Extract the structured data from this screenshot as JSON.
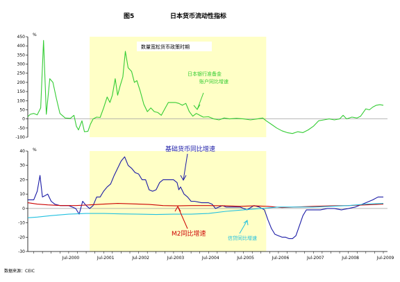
{
  "figure": {
    "fig_label": "图5",
    "title": "日本货币流动性指标",
    "source": "数据来源：CEIC"
  },
  "colors": {
    "shade": "#FFFFC6",
    "reserve": "#33CC33",
    "base": "#1A1AA6",
    "m2": "#CC0000",
    "loan": "#20C0E0",
    "zero_line": "#A0A0A0"
  },
  "chart_data": [
    {
      "type": "line",
      "unit": "%",
      "ylim": [
        -100,
        450
      ],
      "yticks": [
        -100,
        -50,
        0,
        50,
        100,
        150,
        200,
        250,
        300,
        350,
        400,
        450
      ],
      "shaded_period": {
        "label": "数量宽松货币政策时期",
        "x_start": 2001.1,
        "x_end": 2006.15
      },
      "series": [
        {
          "name": "日本银行准备金账户同比增速",
          "label_lines": [
            "日本银行准备金",
            "账户同比增速"
          ],
          "color_key": "reserve",
          "points": [
            [
              1999.33,
              12
            ],
            [
              1999.4,
              25
            ],
            [
              1999.5,
              30
            ],
            [
              1999.6,
              22
            ],
            [
              1999.7,
              60
            ],
            [
              1999.78,
              430
            ],
            [
              1999.86,
              25
            ],
            [
              1999.96,
              220
            ],
            [
              2000.05,
              200
            ],
            [
              2000.15,
              110
            ],
            [
              2000.25,
              30
            ],
            [
              2000.4,
              5
            ],
            [
              2000.55,
              3
            ],
            [
              2000.65,
              20
            ],
            [
              2000.72,
              -40
            ],
            [
              2000.78,
              -60
            ],
            [
              2000.88,
              -10
            ],
            [
              2000.95,
              -70
            ],
            [
              2001.05,
              -68
            ],
            [
              2001.12,
              -30
            ],
            [
              2001.2,
              0
            ],
            [
              2001.3,
              10
            ],
            [
              2001.4,
              8
            ],
            [
              2001.5,
              60
            ],
            [
              2001.6,
              120
            ],
            [
              2001.68,
              90
            ],
            [
              2001.75,
              130
            ],
            [
              2001.83,
              220
            ],
            [
              2001.9,
              130
            ],
            [
              2001.97,
              180
            ],
            [
              2002.05,
              230
            ],
            [
              2002.12,
              370
            ],
            [
              2002.2,
              280
            ],
            [
              2002.3,
              260
            ],
            [
              2002.38,
              200
            ],
            [
              2002.45,
              210
            ],
            [
              2002.55,
              150
            ],
            [
              2002.65,
              80
            ],
            [
              2002.75,
              40
            ],
            [
              2002.85,
              60
            ],
            [
              2002.95,
              40
            ],
            [
              2003.05,
              35
            ],
            [
              2003.15,
              20
            ],
            [
              2003.25,
              55
            ],
            [
              2003.35,
              90
            ],
            [
              2003.45,
              90
            ],
            [
              2003.55,
              90
            ],
            [
              2003.65,
              85
            ],
            [
              2003.75,
              75
            ],
            [
              2003.85,
              85
            ],
            [
              2003.95,
              40
            ],
            [
              2004.05,
              15
            ],
            [
              2004.15,
              30
            ],
            [
              2004.25,
              20
            ],
            [
              2004.35,
              10
            ],
            [
              2004.5,
              12
            ],
            [
              2004.65,
              0
            ],
            [
              2004.8,
              -5
            ],
            [
              2004.95,
              5
            ],
            [
              2005.1,
              0
            ],
            [
              2005.3,
              3
            ],
            [
              2005.5,
              0
            ],
            [
              2005.7,
              -5
            ],
            [
              2005.9,
              0
            ],
            [
              2006.05,
              5
            ],
            [
              2006.15,
              -10
            ],
            [
              2006.3,
              -30
            ],
            [
              2006.45,
              -50
            ],
            [
              2006.6,
              -65
            ],
            [
              2006.75,
              -75
            ],
            [
              2006.9,
              -80
            ],
            [
              2007.05,
              -70
            ],
            [
              2007.2,
              -75
            ],
            [
              2007.35,
              -60
            ],
            [
              2007.5,
              -40
            ],
            [
              2007.65,
              -10
            ],
            [
              2007.8,
              -5
            ],
            [
              2007.95,
              0
            ],
            [
              2008.1,
              -5
            ],
            [
              2008.25,
              0
            ],
            [
              2008.35,
              20
            ],
            [
              2008.45,
              0
            ],
            [
              2008.6,
              10
            ],
            [
              2008.75,
              5
            ],
            [
              2008.85,
              15
            ],
            [
              2009.0,
              55
            ],
            [
              2009.1,
              50
            ],
            [
              2009.2,
              65
            ],
            [
              2009.3,
              75
            ],
            [
              2009.4,
              78
            ],
            [
              2009.5,
              75
            ]
          ]
        }
      ]
    },
    {
      "type": "line",
      "unit": "%",
      "ylim": [
        -30,
        40
      ],
      "yticks": [
        -30,
        -20,
        -10,
        0,
        10,
        20,
        30,
        40
      ],
      "x_tick_labels": [
        {
          "x": 2000.5,
          "label": "Jul-2000"
        },
        {
          "x": 2001.5,
          "label": "Jul-2001"
        },
        {
          "x": 2002.5,
          "label": "Jul-2002"
        },
        {
          "x": 2003.5,
          "label": "Jul-2003"
        },
        {
          "x": 2004.5,
          "label": "Jul-2004"
        },
        {
          "x": 2005.5,
          "label": "Jul-2005"
        },
        {
          "x": 2006.5,
          "label": "Jul-2006"
        },
        {
          "x": 2007.5,
          "label": "Jul-2007"
        },
        {
          "x": 2008.5,
          "label": "Jul-2008"
        },
        {
          "x": 2009.5,
          "label": "Jul-2009"
        }
      ],
      "series": [
        {
          "name": "基础货币同比增速",
          "color_key": "base",
          "points": [
            [
              1999.33,
              6
            ],
            [
              1999.5,
              6
            ],
            [
              1999.6,
              12
            ],
            [
              1999.68,
              23
            ],
            [
              1999.75,
              8
            ],
            [
              1999.83,
              9
            ],
            [
              1999.9,
              10
            ],
            [
              2000.0,
              5
            ],
            [
              2000.1,
              3
            ],
            [
              2000.25,
              2
            ],
            [
              2000.5,
              2
            ],
            [
              2000.7,
              0
            ],
            [
              2000.8,
              -4
            ],
            [
              2000.9,
              5
            ],
            [
              2001.0,
              2
            ],
            [
              2001.1,
              0
            ],
            [
              2001.2,
              2
            ],
            [
              2001.3,
              8
            ],
            [
              2001.4,
              8
            ],
            [
              2001.5,
              12
            ],
            [
              2001.6,
              15
            ],
            [
              2001.7,
              17
            ],
            [
              2001.8,
              23
            ],
            [
              2001.9,
              28
            ],
            [
              2002.0,
              33
            ],
            [
              2002.1,
              36
            ],
            [
              2002.2,
              30
            ],
            [
              2002.3,
              28
            ],
            [
              2002.4,
              25
            ],
            [
              2002.5,
              24
            ],
            [
              2002.6,
              20
            ],
            [
              2002.7,
              20
            ],
            [
              2002.8,
              13
            ],
            [
              2002.9,
              12
            ],
            [
              2003.0,
              13
            ],
            [
              2003.1,
              18
            ],
            [
              2003.2,
              20
            ],
            [
              2003.3,
              20
            ],
            [
              2003.4,
              20
            ],
            [
              2003.5,
              20
            ],
            [
              2003.6,
              18
            ],
            [
              2003.65,
              13
            ],
            [
              2003.7,
              15
            ],
            [
              2003.8,
              10
            ],
            [
              2003.9,
              8
            ],
            [
              2004.0,
              5
            ],
            [
              2004.1,
              5
            ],
            [
              2004.3,
              4
            ],
            [
              2004.5,
              4
            ],
            [
              2004.6,
              3
            ],
            [
              2004.7,
              0
            ],
            [
              2004.8,
              1
            ],
            [
              2004.9,
              2
            ],
            [
              2005.0,
              1
            ],
            [
              2005.2,
              1
            ],
            [
              2005.4,
              1
            ],
            [
              2005.6,
              -1
            ],
            [
              2005.8,
              2
            ],
            [
              2005.95,
              1
            ],
            [
              2006.1,
              -1
            ],
            [
              2006.2,
              -8
            ],
            [
              2006.3,
              -14
            ],
            [
              2006.4,
              -18
            ],
            [
              2006.5,
              -19
            ],
            [
              2006.6,
              -20
            ],
            [
              2006.7,
              -20
            ],
            [
              2006.8,
              -21
            ],
            [
              2006.9,
              -21
            ],
            [
              2007.0,
              -19
            ],
            [
              2007.1,
              -12
            ],
            [
              2007.2,
              -5
            ],
            [
              2007.3,
              -1
            ],
            [
              2007.5,
              -1
            ],
            [
              2007.7,
              -1
            ],
            [
              2007.9,
              0
            ],
            [
              2008.1,
              0
            ],
            [
              2008.3,
              -1
            ],
            [
              2008.5,
              0
            ],
            [
              2008.7,
              1
            ],
            [
              2008.9,
              3
            ],
            [
              2009.0,
              4
            ],
            [
              2009.2,
              6
            ],
            [
              2009.35,
              8
            ],
            [
              2009.5,
              8
            ]
          ]
        },
        {
          "name": "M2同比增速",
          "color_key": "m2",
          "points": [
            [
              1999.33,
              4
            ],
            [
              1999.6,
              3
            ],
            [
              1999.9,
              2.5
            ],
            [
              2000.3,
              2
            ],
            [
              2000.7,
              2
            ],
            [
              2001.1,
              2.5
            ],
            [
              2001.5,
              3
            ],
            [
              2001.9,
              3.5
            ],
            [
              2002.3,
              3.2
            ],
            [
              2002.8,
              2.8
            ],
            [
              2003.2,
              2
            ],
            [
              2003.6,
              1.8
            ],
            [
              2004.0,
              2
            ],
            [
              2004.5,
              2
            ],
            [
              2005.0,
              1.8
            ],
            [
              2005.4,
              1.5
            ],
            [
              2005.8,
              1.8
            ],
            [
              2006.2,
              1.5
            ],
            [
              2006.6,
              0.6
            ],
            [
              2007.0,
              1
            ],
            [
              2007.5,
              1.5
            ],
            [
              2008.0,
              1.8
            ],
            [
              2008.5,
              2
            ],
            [
              2009.0,
              2.5
            ],
            [
              2009.5,
              3
            ]
          ]
        },
        {
          "name": "信贷同比增速",
          "color_key": "loan",
          "points": [
            [
              1999.33,
              -6.5
            ],
            [
              1999.6,
              -6
            ],
            [
              2000.0,
              -5
            ],
            [
              2000.5,
              -4
            ],
            [
              2001.0,
              -3.5
            ],
            [
              2001.5,
              -3.5
            ],
            [
              2002.0,
              -3.8
            ],
            [
              2002.5,
              -4
            ],
            [
              2003.0,
              -4.2
            ],
            [
              2003.5,
              -4
            ],
            [
              2004.0,
              -4
            ],
            [
              2004.5,
              -3.5
            ],
            [
              2005.0,
              -2
            ],
            [
              2005.5,
              -1
            ],
            [
              2006.0,
              0
            ],
            [
              2006.5,
              1
            ],
            [
              2007.0,
              1
            ],
            [
              2007.5,
              1
            ],
            [
              2008.0,
              1.5
            ],
            [
              2008.5,
              2
            ],
            [
              2009.0,
              3
            ],
            [
              2009.5,
              3.5
            ]
          ]
        }
      ]
    }
  ]
}
